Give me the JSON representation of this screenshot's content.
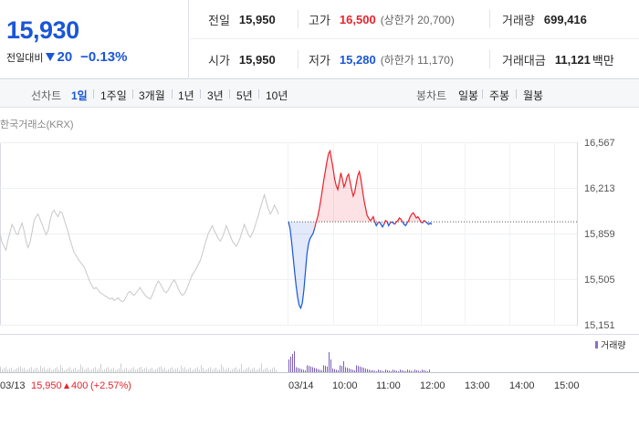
{
  "header": {
    "current_price": "15,930",
    "change_label": "전일대비",
    "change_value": "20",
    "change_rate": "−0.13%",
    "prev_close": {
      "label": "전일",
      "value": "15,950"
    },
    "high": {
      "label": "고가",
      "value": "16,500",
      "sub": "(상한가 20,700)"
    },
    "volume": {
      "label": "거래량",
      "value": "699,416"
    },
    "open": {
      "label": "시가",
      "value": "15,950"
    },
    "low": {
      "label": "저가",
      "value": "15,280",
      "sub": "(하한가 11,170)"
    },
    "trade_amount": {
      "label": "거래대금",
      "value": "11,121",
      "unit": "백만"
    },
    "colors": {
      "up": "#e8222b",
      "down": "#1a56d6"
    }
  },
  "tabs": {
    "line_label": "선차트",
    "line_tabs": [
      "1일",
      "1주일",
      "3개월",
      "1년",
      "3년",
      "5년",
      "10년"
    ],
    "active": "1일",
    "candle_label": "봉차트",
    "candle_tabs": [
      "일봉",
      "주봉",
      "월봉"
    ]
  },
  "source": "한국거래소(KRX)",
  "chart_data": {
    "type": "line",
    "y_ticks": [
      "16,567",
      "16,213",
      "15,859",
      "15,505",
      "15,151"
    ],
    "ylim": [
      15151,
      16567
    ],
    "baseline": 15950,
    "x_labels": [
      "03/13",
      "03/14",
      "10:00",
      "11:00",
      "12:00",
      "13:00",
      "14:00",
      "15:00"
    ],
    "prev_day_series": [
      15860,
      15790,
      15760,
      15730,
      15810,
      15870,
      15930,
      15900,
      15860,
      15850,
      15900,
      15940,
      15880,
      15800,
      15750,
      15790,
      15870,
      15960,
      15990,
      16010,
      15970,
      15930,
      15890,
      15850,
      15880,
      15960,
      16020,
      16040,
      16010,
      15990,
      16030,
      16020,
      15970,
      15920,
      15870,
      15810,
      15760,
      15710,
      15690,
      15660,
      15640,
      15620,
      15600,
      15560,
      15520,
      15480,
      15450,
      15430,
      15440,
      15420,
      15400,
      15390,
      15380,
      15370,
      15360,
      15350,
      15360,
      15340,
      15350,
      15360,
      15340,
      15330,
      15340,
      15370,
      15400,
      15410,
      15390,
      15380,
      15400,
      15420,
      15440,
      15410,
      15390,
      15370,
      15360,
      15350,
      15380,
      15420,
      15460,
      15490,
      15470,
      15440,
      15410,
      15400,
      15420,
      15450,
      15480,
      15500,
      15470,
      15430,
      15400,
      15380,
      15390,
      15420,
      15460,
      15500,
      15540,
      15560,
      15590,
      15620,
      15650,
      15700,
      15760,
      15810,
      15860,
      15890,
      15920,
      15880,
      15850,
      15820,
      15800,
      15830,
      15870,
      15920,
      15880,
      15840,
      15800,
      15780,
      15760,
      15790,
      15830,
      15880,
      15930,
      15890,
      15850,
      15830,
      15860,
      15900,
      15950,
      16000,
      16060,
      16110,
      16160,
      16100,
      16050,
      16010,
      16040,
      16080,
      16050,
      16010
    ],
    "today_series": [
      15950,
      15900,
      15800,
      15680,
      15560,
      15450,
      15360,
      15300,
      15280,
      15320,
      15420,
      15560,
      15700,
      15780,
      15820,
      15840,
      15860,
      15900,
      15950,
      15990,
      16050,
      16120,
      16200,
      16280,
      16350,
      16420,
      16480,
      16500,
      16430,
      16360,
      16280,
      16230,
      16200,
      16260,
      16330,
      16280,
      16220,
      16250,
      16300,
      16320,
      16260,
      16200,
      16150,
      16180,
      16250,
      16310,
      16340,
      16280,
      16200,
      16120,
      16060,
      16000,
      15980,
      15960,
      15970,
      15990,
      15950,
      15920,
      15940,
      15950,
      15930,
      15910,
      15930,
      15960,
      15950,
      15920,
      15940,
      15950,
      15940,
      15930,
      15950,
      15960,
      15980,
      15970,
      15950,
      15930,
      15920,
      15940,
      15960,
      15990,
      16010,
      16020,
      16000,
      15980,
      15990,
      15970,
      15950,
      15940,
      15960,
      15950,
      15940,
      15930,
      15940,
      15930
    ],
    "volume_legend": "거래량",
    "footer_date": "03/13",
    "footer_close": "15,950",
    "footer_change": "400",
    "footer_rate": "(+2.57%)"
  }
}
